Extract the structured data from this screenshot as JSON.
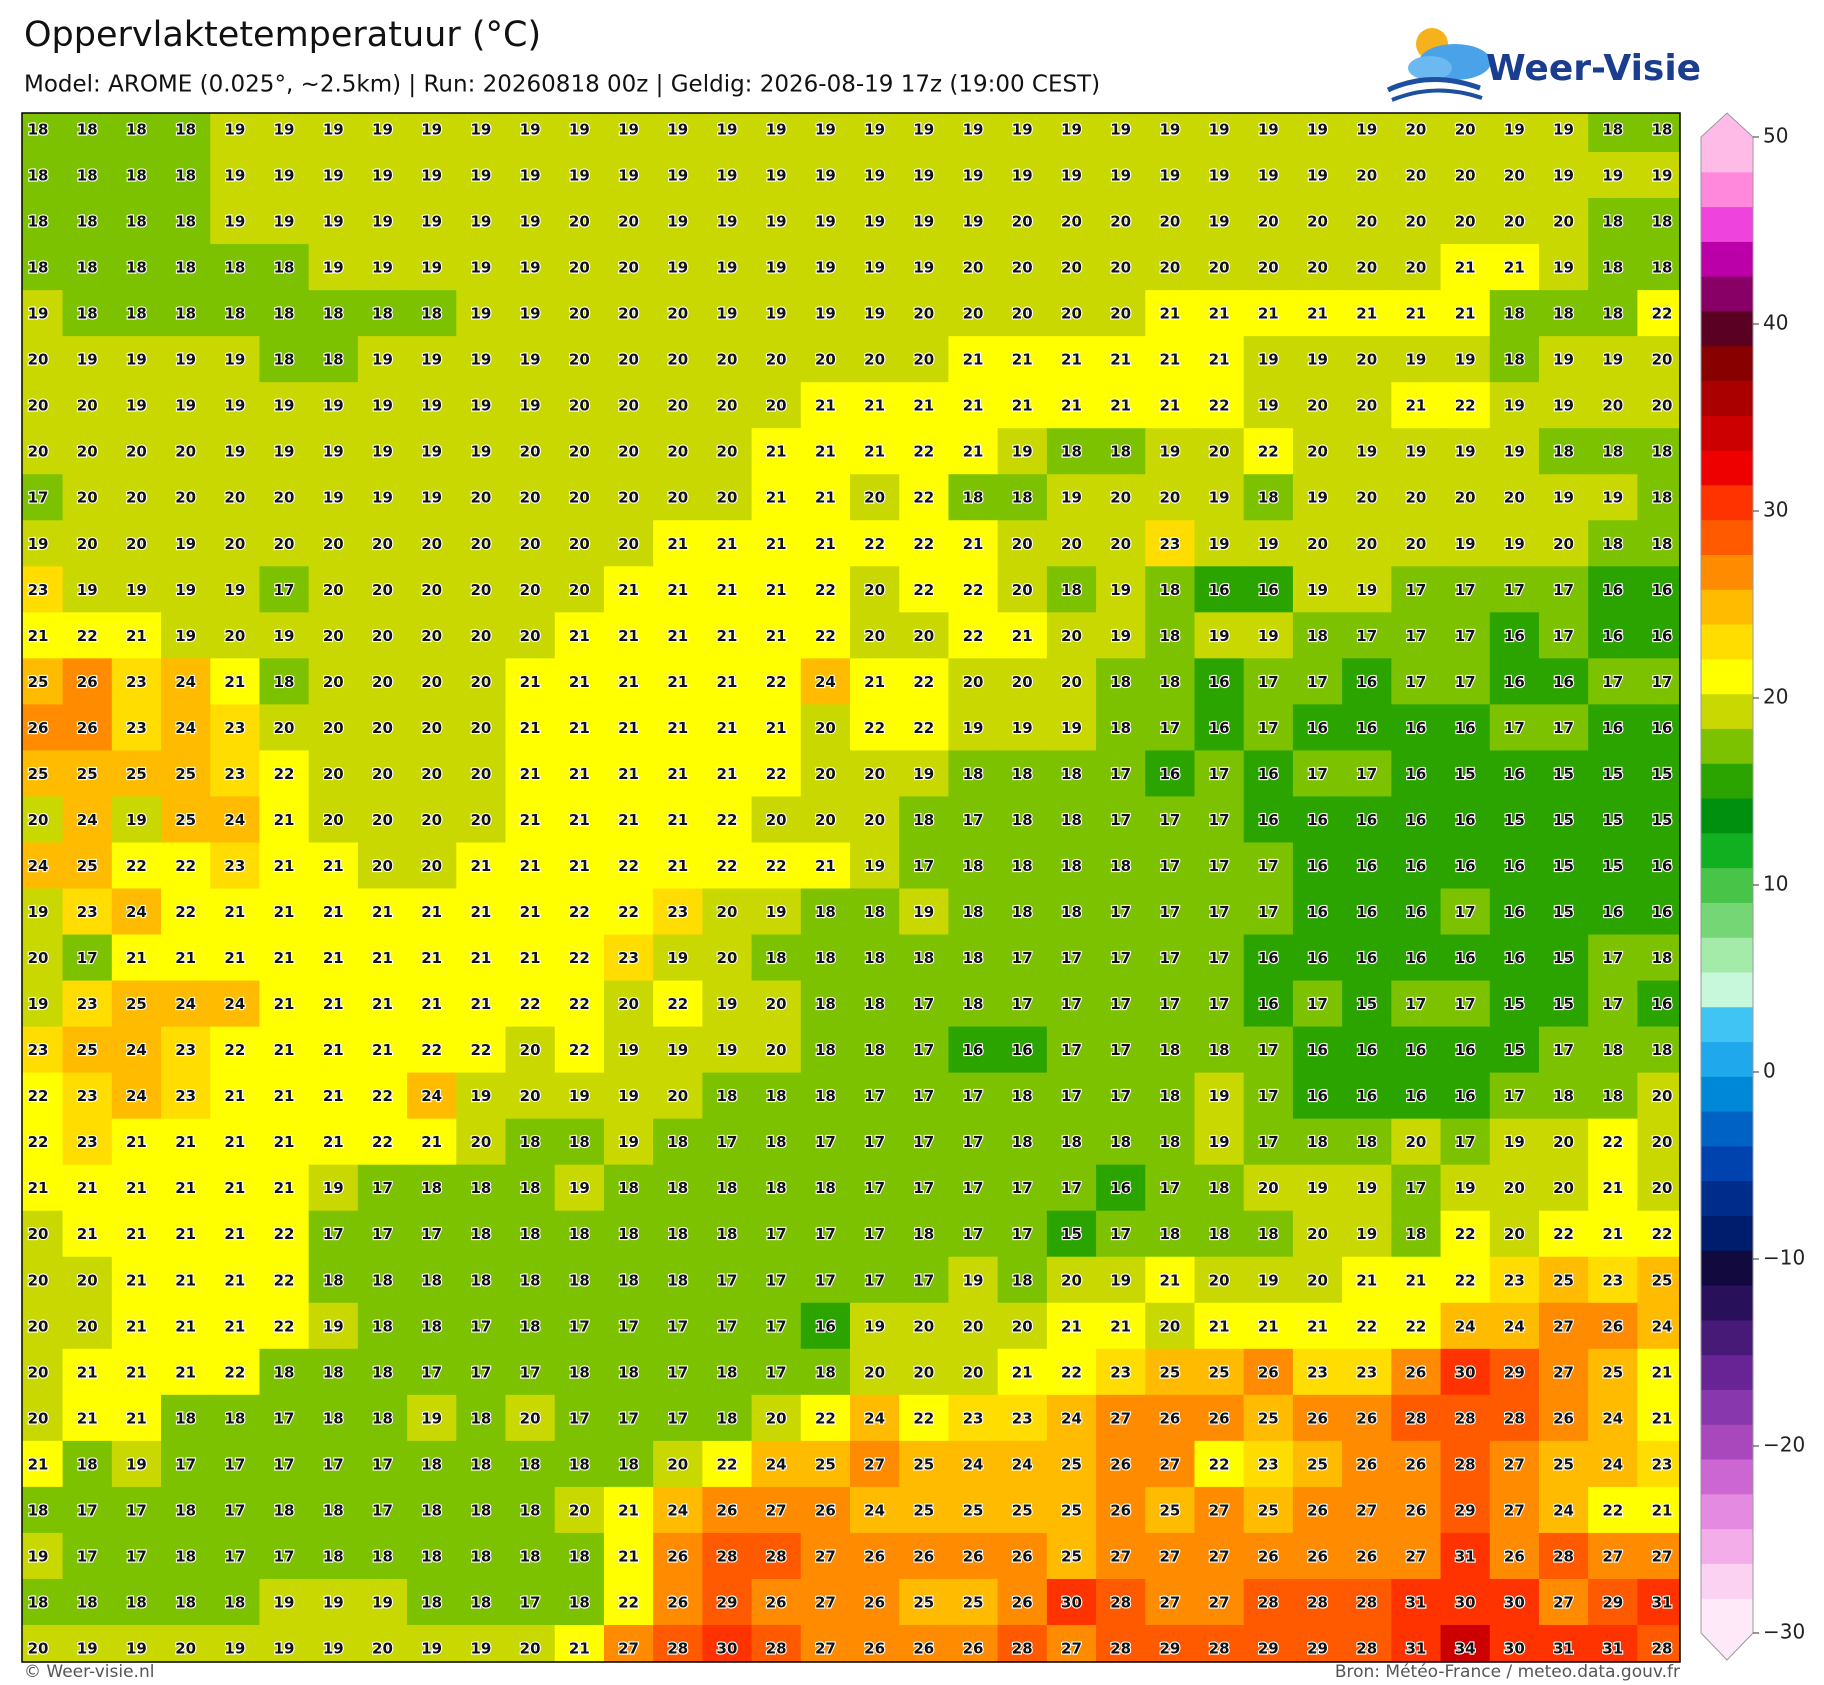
{
  "header": {
    "title": "Oppervlaktetemperatuur (°C)",
    "subtitle": "Model: AROME (0.025°, ~2.5km)  |  Run: 20260818 00z  |  Geldig: 2026-08-19 17z (19:00 CEST)",
    "logo": "Weer-Visie"
  },
  "map": {
    "rows": [
      [
        18,
        18,
        18,
        18,
        19,
        19,
        19,
        19,
        19,
        19,
        19,
        19,
        19,
        19,
        19,
        19,
        19,
        19,
        19,
        19,
        19,
        19,
        19,
        19,
        19,
        19,
        19,
        19,
        20,
        20,
        19,
        19,
        18,
        18
      ],
      [
        18,
        18,
        18,
        18,
        19,
        19,
        19,
        19,
        19,
        19,
        19,
        19,
        19,
        19,
        19,
        19,
        19,
        19,
        19,
        19,
        19,
        19,
        19,
        19,
        19,
        19,
        19,
        20,
        20,
        20,
        20,
        19,
        19,
        19
      ],
      [
        18,
        18,
        18,
        18,
        19,
        19,
        19,
        19,
        19,
        19,
        19,
        20,
        20,
        19,
        19,
        19,
        19,
        19,
        19,
        19,
        20,
        20,
        20,
        20,
        19,
        20,
        20,
        20,
        20,
        20,
        20,
        20,
        18,
        18
      ],
      [
        18,
        18,
        18,
        18,
        18,
        18,
        19,
        19,
        19,
        19,
        19,
        20,
        20,
        19,
        19,
        19,
        19,
        19,
        19,
        20,
        20,
        20,
        20,
        20,
        20,
        20,
        20,
        20,
        20,
        21,
        21,
        19,
        18,
        18
      ],
      [
        19,
        18,
        18,
        18,
        18,
        18,
        18,
        18,
        18,
        19,
        19,
        20,
        20,
        20,
        19,
        19,
        19,
        19,
        20,
        20,
        20,
        20,
        20,
        21,
        21,
        21,
        21,
        21,
        21,
        21,
        18,
        18,
        18,
        22
      ],
      [
        20,
        19,
        19,
        19,
        19,
        18,
        18,
        19,
        19,
        19,
        19,
        20,
        20,
        20,
        20,
        20,
        20,
        20,
        20,
        21,
        21,
        21,
        21,
        21,
        21,
        19,
        19,
        20,
        19,
        19,
        18,
        19,
        19,
        20
      ],
      [
        20,
        20,
        19,
        19,
        19,
        19,
        19,
        19,
        19,
        19,
        19,
        20,
        20,
        20,
        20,
        20,
        21,
        21,
        21,
        21,
        21,
        21,
        21,
        21,
        22,
        19,
        20,
        20,
        21,
        22,
        19,
        19,
        20,
        20
      ],
      [
        20,
        20,
        20,
        20,
        19,
        19,
        19,
        19,
        19,
        19,
        20,
        20,
        20,
        20,
        20,
        21,
        21,
        21,
        22,
        21,
        19,
        18,
        18,
        19,
        20,
        22,
        20,
        19,
        19,
        19,
        19,
        18,
        18,
        18
      ],
      [
        17,
        20,
        20,
        20,
        20,
        20,
        19,
        19,
        19,
        20,
        20,
        20,
        20,
        20,
        20,
        21,
        21,
        20,
        22,
        18,
        18,
        19,
        20,
        20,
        19,
        18,
        19,
        20,
        20,
        20,
        20,
        19,
        19,
        18
      ],
      [
        19,
        20,
        20,
        19,
        20,
        20,
        20,
        20,
        20,
        20,
        20,
        20,
        20,
        21,
        21,
        21,
        21,
        22,
        22,
        21,
        20,
        20,
        20,
        23,
        19,
        19,
        20,
        20,
        20,
        19,
        19,
        20,
        18,
        18
      ],
      [
        23,
        19,
        19,
        19,
        19,
        17,
        20,
        20,
        20,
        20,
        20,
        20,
        21,
        21,
        21,
        21,
        22,
        20,
        22,
        22,
        20,
        18,
        19,
        18,
        16,
        16,
        19,
        19,
        17,
        17,
        17,
        17,
        16,
        16
      ],
      [
        21,
        22,
        21,
        19,
        20,
        19,
        20,
        20,
        20,
        20,
        20,
        21,
        21,
        21,
        21,
        21,
        22,
        20,
        20,
        22,
        21,
        20,
        19,
        18,
        19,
        19,
        18,
        17,
        17,
        17,
        16,
        17,
        16,
        16
      ],
      [
        25,
        26,
        23,
        24,
        21,
        18,
        20,
        20,
        20,
        20,
        21,
        21,
        21,
        21,
        21,
        22,
        24,
        21,
        22,
        20,
        20,
        20,
        18,
        18,
        16,
        17,
        17,
        16,
        17,
        17,
        16,
        16,
        17,
        17
      ],
      [
        26,
        26,
        23,
        24,
        23,
        20,
        20,
        20,
        20,
        20,
        21,
        21,
        21,
        21,
        21,
        21,
        20,
        22,
        22,
        19,
        19,
        19,
        18,
        17,
        16,
        17,
        16,
        16,
        16,
        16,
        17,
        17,
        16,
        16
      ],
      [
        25,
        25,
        25,
        25,
        23,
        22,
        20,
        20,
        20,
        20,
        21,
        21,
        21,
        21,
        21,
        22,
        20,
        20,
        19,
        18,
        18,
        18,
        17,
        16,
        17,
        16,
        17,
        17,
        16,
        15,
        16,
        15,
        15,
        15
      ],
      [
        20,
        24,
        19,
        25,
        24,
        21,
        20,
        20,
        20,
        20,
        21,
        21,
        21,
        21,
        22,
        20,
        20,
        20,
        18,
        17,
        18,
        18,
        17,
        17,
        17,
        16,
        16,
        16,
        16,
        16,
        15,
        15,
        15,
        15
      ],
      [
        24,
        25,
        22,
        22,
        23,
        21,
        21,
        20,
        20,
        21,
        21,
        21,
        22,
        21,
        22,
        22,
        21,
        19,
        17,
        18,
        18,
        18,
        18,
        17,
        17,
        17,
        16,
        16,
        16,
        16,
        16,
        15,
        15,
        16
      ],
      [
        19,
        23,
        24,
        22,
        21,
        21,
        21,
        21,
        21,
        21,
        21,
        22,
        22,
        23,
        20,
        19,
        18,
        18,
        19,
        18,
        18,
        18,
        17,
        17,
        17,
        17,
        16,
        16,
        16,
        17,
        16,
        15,
        16,
        16
      ],
      [
        20,
        17,
        21,
        21,
        21,
        21,
        21,
        21,
        21,
        21,
        21,
        22,
        23,
        19,
        20,
        18,
        18,
        18,
        18,
        18,
        17,
        17,
        17,
        17,
        17,
        16,
        16,
        16,
        16,
        16,
        16,
        15,
        17,
        18
      ],
      [
        19,
        23,
        25,
        24,
        24,
        21,
        21,
        21,
        21,
        21,
        22,
        22,
        20,
        22,
        19,
        20,
        18,
        18,
        17,
        18,
        17,
        17,
        17,
        17,
        17,
        16,
        17,
        15,
        17,
        17,
        15,
        15,
        17,
        16
      ],
      [
        23,
        25,
        24,
        23,
        22,
        21,
        21,
        21,
        22,
        22,
        20,
        22,
        19,
        19,
        19,
        20,
        18,
        18,
        17,
        16,
        16,
        17,
        17,
        18,
        18,
        17,
        16,
        16,
        16,
        16,
        15,
        17,
        18,
        18
      ],
      [
        22,
        23,
        24,
        23,
        21,
        21,
        21,
        22,
        24,
        19,
        20,
        19,
        19,
        20,
        18,
        18,
        18,
        17,
        17,
        17,
        18,
        17,
        17,
        18,
        19,
        17,
        16,
        16,
        16,
        16,
        17,
        18,
        18,
        20
      ],
      [
        22,
        23,
        21,
        21,
        21,
        21,
        21,
        22,
        21,
        20,
        18,
        18,
        19,
        18,
        17,
        18,
        17,
        17,
        17,
        17,
        18,
        18,
        18,
        18,
        19,
        17,
        18,
        18,
        20,
        17,
        19,
        20,
        22,
        20
      ],
      [
        21,
        21,
        21,
        21,
        21,
        21,
        19,
        17,
        18,
        18,
        18,
        19,
        18,
        18,
        18,
        18,
        18,
        17,
        17,
        17,
        17,
        17,
        16,
        17,
        18,
        20,
        19,
        19,
        17,
        19,
        20,
        20,
        21,
        20
      ],
      [
        20,
        21,
        21,
        21,
        21,
        22,
        17,
        17,
        17,
        18,
        18,
        18,
        18,
        18,
        18,
        17,
        17,
        17,
        18,
        17,
        17,
        15,
        17,
        18,
        18,
        18,
        20,
        19,
        18,
        22,
        20,
        22,
        21,
        22
      ],
      [
        20,
        20,
        21,
        21,
        21,
        22,
        18,
        18,
        18,
        18,
        18,
        18,
        18,
        18,
        17,
        17,
        17,
        17,
        17,
        19,
        18,
        20,
        19,
        21,
        20,
        19,
        20,
        21,
        21,
        22,
        23,
        25,
        23,
        25
      ],
      [
        20,
        20,
        21,
        21,
        21,
        22,
        19,
        18,
        18,
        17,
        18,
        17,
        17,
        17,
        17,
        17,
        16,
        19,
        20,
        20,
        20,
        21,
        21,
        20,
        21,
        21,
        21,
        22,
        22,
        24,
        24,
        27,
        26,
        24
      ],
      [
        20,
        21,
        21,
        21,
        22,
        18,
        18,
        18,
        17,
        17,
        17,
        18,
        18,
        17,
        18,
        17,
        18,
        20,
        20,
        20,
        21,
        22,
        23,
        25,
        25,
        26,
        23,
        23,
        26,
        30,
        29,
        27,
        25,
        21
      ],
      [
        20,
        21,
        21,
        18,
        18,
        17,
        18,
        18,
        19,
        18,
        20,
        17,
        17,
        17,
        18,
        20,
        22,
        24,
        22,
        23,
        23,
        24,
        27,
        26,
        26,
        25,
        26,
        26,
        28,
        28,
        28,
        26,
        24,
        21
      ],
      [
        21,
        18,
        19,
        17,
        17,
        17,
        17,
        17,
        18,
        18,
        18,
        18,
        18,
        20,
        22,
        24,
        25,
        27,
        25,
        24,
        24,
        25,
        26,
        27,
        22,
        23,
        25,
        26,
        26,
        28,
        27,
        25,
        24,
        23
      ],
      [
        18,
        17,
        17,
        18,
        17,
        18,
        18,
        17,
        18,
        18,
        18,
        20,
        21,
        24,
        26,
        27,
        26,
        24,
        25,
        25,
        25,
        25,
        26,
        25,
        27,
        25,
        26,
        27,
        26,
        29,
        27,
        24,
        22,
        21
      ],
      [
        19,
        17,
        17,
        18,
        17,
        17,
        18,
        18,
        18,
        18,
        18,
        18,
        21,
        26,
        28,
        28,
        27,
        26,
        26,
        26,
        26,
        25,
        27,
        27,
        27,
        26,
        26,
        26,
        27,
        31,
        26,
        28,
        27,
        27
      ],
      [
        18,
        18,
        18,
        18,
        18,
        19,
        19,
        19,
        18,
        18,
        17,
        18,
        22,
        26,
        29,
        26,
        27,
        26,
        25,
        25,
        26,
        30,
        28,
        27,
        27,
        28,
        28,
        28,
        31,
        30,
        30,
        27,
        29,
        31
      ],
      [
        20,
        19,
        19,
        20,
        19,
        19,
        19,
        20,
        19,
        19,
        20,
        21,
        27,
        28,
        30,
        28,
        27,
        26,
        26,
        26,
        28,
        27,
        28,
        29,
        28,
        29,
        29,
        28,
        31,
        34,
        30,
        31,
        31,
        28
      ]
    ]
  },
  "colorbar": {
    "limits": [
      -30,
      50
    ],
    "ticks": [
      50,
      40,
      30,
      20,
      10,
      0,
      {
        "value": -10,
        "label": "−10"
      },
      {
        "value": -20,
        "label": "−20"
      },
      {
        "value": -30,
        "label": "−30"
      }
    ],
    "colors": [
      "#fde9f8",
      "#fcd2f2",
      "#f3aee9",
      "#e48ae0",
      "#cc66d2",
      "#a848bc",
      "#8838ac",
      "#682494",
      "#481a78",
      "#28105a",
      "#120a3e",
      "#001c6c",
      "#002c8c",
      "#0042ae",
      "#0062c4",
      "#0088d8",
      "#20a8ec",
      "#40c4f4",
      "#c8f8dc",
      "#a4eaa8",
      "#74d674",
      "#48c448",
      "#10b020",
      "#009010",
      "#2ca400",
      "#7cc200",
      "#c8d800",
      "#ffff00",
      "#ffdd00",
      "#ffbb00",
      "#ff8c00",
      "#ff5a00",
      "#ff3300",
      "#ee0000",
      "#cc0000",
      "#aa0000",
      "#880000",
      "#5a0022",
      "#880066",
      "#bb00aa",
      "#ee44dd",
      "#ff88dd",
      "#ffbbe8"
    ]
  },
  "footer": {
    "left": "© Weer-visie.nl",
    "right": "Bron: Météo-France / meteo.data.gouv.fr"
  }
}
